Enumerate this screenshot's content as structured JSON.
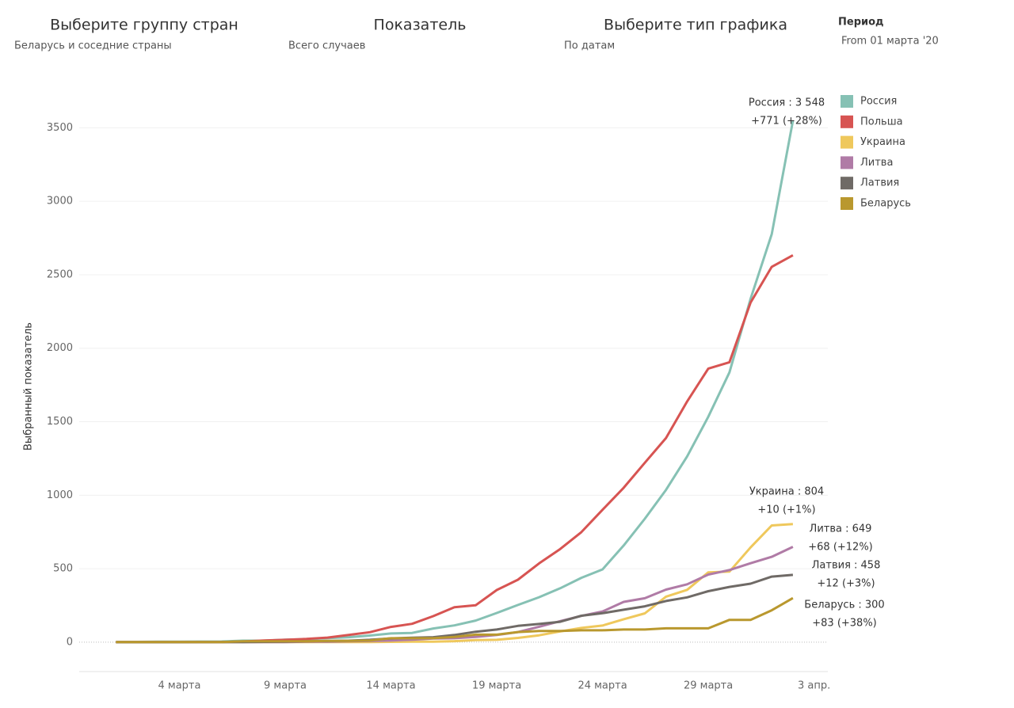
{
  "filters": [
    {
      "title": "Выберите группу стран",
      "value": "Беларусь и соседние страны"
    },
    {
      "title": "Показатель",
      "value": "Всего случаев"
    },
    {
      "title": "Выберите тип графика",
      "value": "По датам"
    },
    {
      "title": "Период",
      "value": "From 01 марта '20"
    }
  ],
  "chart_data": {
    "type": "line",
    "y_label": "Выбранный показатель",
    "categories": [
      null,
      null,
      null,
      "4 марта",
      null,
      null,
      null,
      null,
      "9 марта",
      null,
      null,
      null,
      null,
      "14 марта",
      null,
      null,
      null,
      null,
      "19 марта",
      null,
      null,
      null,
      null,
      "24 марта",
      null,
      null,
      null,
      null,
      "29 марта",
      null,
      null,
      null,
      null,
      "3 апр."
    ],
    "ylim": [
      -200,
      3750
    ],
    "yticks": [
      0,
      500,
      1000,
      1500,
      2000,
      2500,
      3000,
      3500
    ],
    "grid": true,
    "legend": "top-right",
    "series": [
      {
        "name": "Россия",
        "color": "#86c1b4",
        "values": [
          2,
          2,
          3,
          3,
          4,
          5,
          10,
          10,
          17,
          20,
          28,
          34,
          45,
          59,
          63,
          93,
          114,
          147,
          199,
          253,
          306,
          367,
          438,
          495,
          658,
          840,
          1036,
          1264,
          1534,
          1836,
          2337,
          2777,
          3548,
          null
        ]
      },
      {
        "name": "Польша",
        "color": "#d75452",
        "values": [
          0,
          0,
          0,
          1,
          1,
          1,
          5,
          11,
          16,
          22,
          31,
          49,
          68,
          104,
          125,
          177,
          238,
          251,
          355,
          425,
          536,
          634,
          749,
          901,
          1051,
          1221,
          1389,
          1638,
          1862,
          1905,
          2311,
          2554,
          2633,
          null
        ]
      },
      {
        "name": "Украина",
        "color": "#efc85c",
        "values": [
          0,
          0,
          0,
          1,
          1,
          1,
          1,
          1,
          1,
          1,
          1,
          1,
          1,
          2,
          3,
          3,
          7,
          14,
          16,
          29,
          47,
          73,
          97,
          113,
          156,
          196,
          310,
          356,
          475,
          480,
          645,
          794,
          804,
          null
        ]
      },
      {
        "name": "Литва",
        "color": "#b07ba6",
        "values": [
          0,
          0,
          0,
          0,
          0,
          1,
          1,
          1,
          1,
          3,
          3,
          6,
          8,
          12,
          17,
          25,
          27,
          36,
          49,
          69,
          105,
          143,
          179,
          209,
          274,
          299,
          358,
          394,
          460,
          491,
          537,
          581,
          649,
          null
        ]
      },
      {
        "name": "Латвия",
        "color": "#6f6a66",
        "values": [
          0,
          0,
          0,
          0,
          1,
          1,
          1,
          2,
          3,
          6,
          8,
          10,
          16,
          26,
          30,
          34,
          49,
          71,
          86,
          111,
          124,
          139,
          180,
          197,
          221,
          244,
          280,
          305,
          347,
          376,
          398,
          446,
          458,
          null
        ]
      },
      {
        "name": "Беларусь",
        "color": "#b9982e",
        "values": [
          1,
          1,
          1,
          1,
          1,
          1,
          6,
          6,
          6,
          6,
          9,
          9,
          12,
          27,
          27,
          27,
          36,
          51,
          51,
          69,
          76,
          76,
          81,
          81,
          86,
          86,
          94,
          94,
          94,
          152,
          152,
          217,
          300,
          null
        ]
      }
    ],
    "annotations": [
      [
        "Россия : 3 548",
        "+771 (+28%)"
      ],
      [
        "Украина : 804",
        "+10 (+1%)"
      ],
      [
        "Литва : 649",
        "+68 (+12%)"
      ],
      [
        "Латвия : 458",
        "+12 (+3%)"
      ],
      [
        "Беларусь : 300",
        "+83 (+38%)"
      ]
    ]
  }
}
